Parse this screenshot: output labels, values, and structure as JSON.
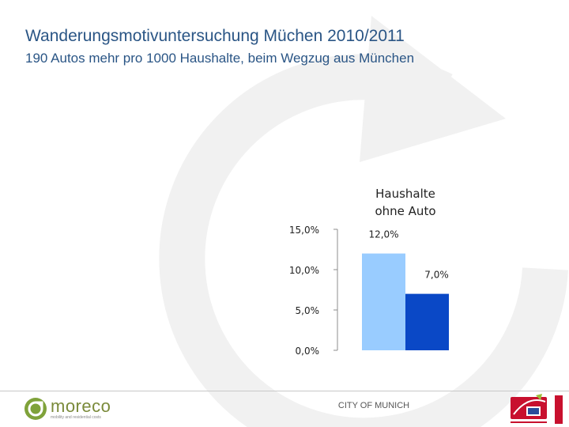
{
  "title": "Wanderungsmotivuntersuchung Müchen 2010/2011",
  "subtitle": "190 Autos mehr pro 1000 Haushalte, beim Wegzug aus München",
  "footer": {
    "center_text": "CITY OF MUNICH",
    "logo_left_name": "moreco",
    "logo_left_tagline": "mobility and residential costs"
  },
  "colors": {
    "title": "#2a5585",
    "bar_light": "#99ccff",
    "bar_dark": "#0a48c6",
    "background_arrow": "#f1f1f1"
  },
  "chart_data": {
    "type": "bar",
    "title": "Haushalte ohne Auto",
    "title_lines": [
      "Haushalte",
      "ohne Auto"
    ],
    "categories": [
      "",
      ""
    ],
    "values": [
      12.0,
      7.0
    ],
    "data_labels": [
      "12,0%",
      "7,0%"
    ],
    "ylim": [
      0,
      15
    ],
    "yticks": [
      0,
      5,
      10,
      15
    ],
    "ytick_labels": [
      "0,0%",
      "5,0%",
      "10,0%",
      "15,0%"
    ],
    "xlabel": "",
    "ylabel": "",
    "grid": false,
    "legend": "none"
  }
}
